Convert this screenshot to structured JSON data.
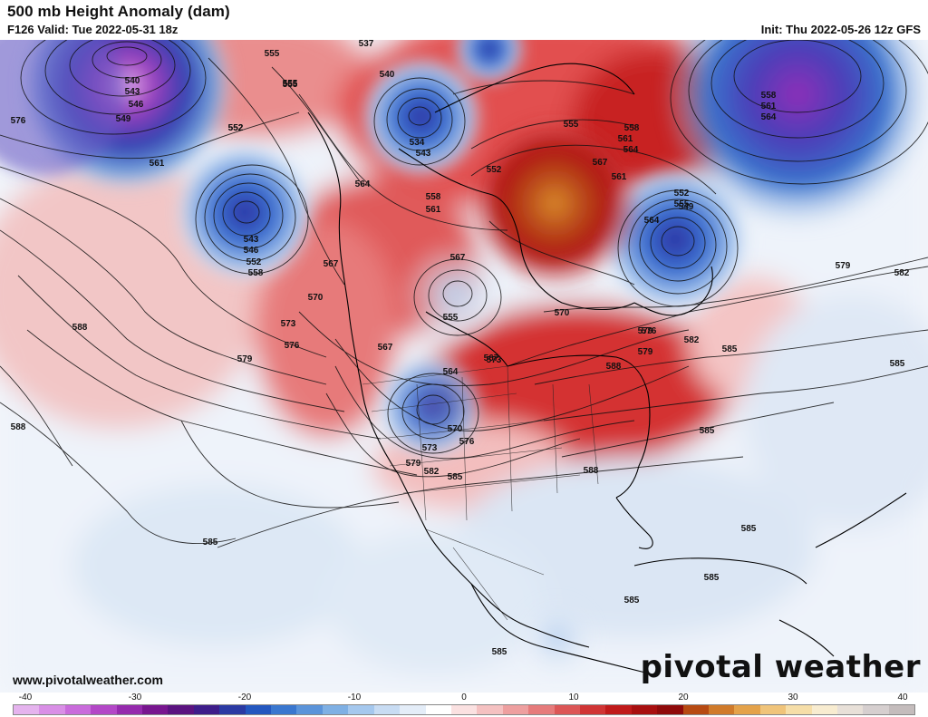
{
  "header": {
    "title": "500 mb Height Anomaly (dam)",
    "valid": "F126 Valid: Tue 2022-05-31 18z",
    "init": "Init: Thu 2022-05-26 12z GFS"
  },
  "footer": {
    "site": "www.pivotalweather.com",
    "brand": "pivotal weather"
  },
  "colorbar": {
    "ticks": [
      "-40",
      "-30",
      "-20",
      "-10",
      "0",
      "10",
      "20",
      "30",
      "40"
    ],
    "colors": [
      "#e5b3ee",
      "#d98fe6",
      "#c96bdb",
      "#b347c7",
      "#952aad",
      "#78168f",
      "#5b1380",
      "#3e1d8a",
      "#2b3aa3",
      "#2457bf",
      "#3a77cf",
      "#5b94da",
      "#7fb0e4",
      "#a5c8ee",
      "#c8dcf3",
      "#e4edf8",
      "#ffffff",
      "#fbe1e1",
      "#f5c1c1",
      "#ee9f9f",
      "#e67b7b",
      "#dc5656",
      "#d03434",
      "#c01a1a",
      "#a80f0f",
      "#8f0a0a",
      "#b74a12",
      "#d07a2a",
      "#e4a24a",
      "#f0c47a",
      "#f6dea8",
      "#f8ecd0",
      "#e8e0d8",
      "#d6cfcf",
      "#c4bcbc"
    ]
  },
  "map": {
    "contour_labels": [
      "537",
      "540",
      "543",
      "546",
      "549",
      "552",
      "555",
      "558",
      "561",
      "564",
      "567",
      "570",
      "573",
      "576",
      "579",
      "582",
      "585",
      "588"
    ],
    "labels_shown": [
      {
        "t": "540"
      },
      {
        "t": "543"
      },
      {
        "t": "546"
      },
      {
        "t": "549"
      },
      {
        "t": "576"
      },
      {
        "t": "555"
      },
      {
        "t": "552"
      },
      {
        "t": "561"
      },
      {
        "t": "537"
      },
      {
        "t": "555"
      },
      {
        "t": "540"
      },
      {
        "t": "534"
      },
      {
        "t": "543"
      },
      {
        "t": "558"
      },
      {
        "t": "561"
      },
      {
        "t": "564"
      },
      {
        "t": "552"
      },
      {
        "t": "555"
      },
      {
        "t": "558"
      },
      {
        "t": "561"
      },
      {
        "t": "564"
      },
      {
        "t": "567"
      },
      {
        "t": "552"
      },
      {
        "t": "555"
      },
      {
        "t": "558"
      },
      {
        "t": "561"
      },
      {
        "t": "564"
      },
      {
        "t": "543"
      },
      {
        "t": "546"
      },
      {
        "t": "552"
      },
      {
        "t": "558"
      },
      {
        "t": "555"
      },
      {
        "t": "552"
      },
      {
        "t": "549"
      },
      {
        "t": "579"
      },
      {
        "t": "582"
      },
      {
        "t": "567"
      },
      {
        "t": "570"
      },
      {
        "t": "573"
      },
      {
        "t": "576"
      },
      {
        "t": "579"
      },
      {
        "t": "588"
      },
      {
        "t": "567"
      },
      {
        "t": "570"
      },
      {
        "t": "573"
      },
      {
        "t": "576"
      },
      {
        "t": "579"
      },
      {
        "t": "555"
      },
      {
        "t": "567"
      },
      {
        "t": "564"
      },
      {
        "t": "567"
      },
      {
        "t": "579"
      },
      {
        "t": "582"
      },
      {
        "t": "585"
      },
      {
        "t": "588"
      },
      {
        "t": "585"
      },
      {
        "t": "570"
      },
      {
        "t": "576"
      },
      {
        "t": "573"
      },
      {
        "t": "579"
      },
      {
        "t": "582"
      },
      {
        "t": "585"
      },
      {
        "t": "588"
      },
      {
        "t": "585"
      },
      {
        "t": "588"
      },
      {
        "t": "585"
      },
      {
        "t": "585"
      },
      {
        "t": "585"
      },
      {
        "t": "585"
      },
      {
        "t": "585"
      },
      {
        "t": "564"
      },
      {
        "t": "561"
      }
    ]
  }
}
